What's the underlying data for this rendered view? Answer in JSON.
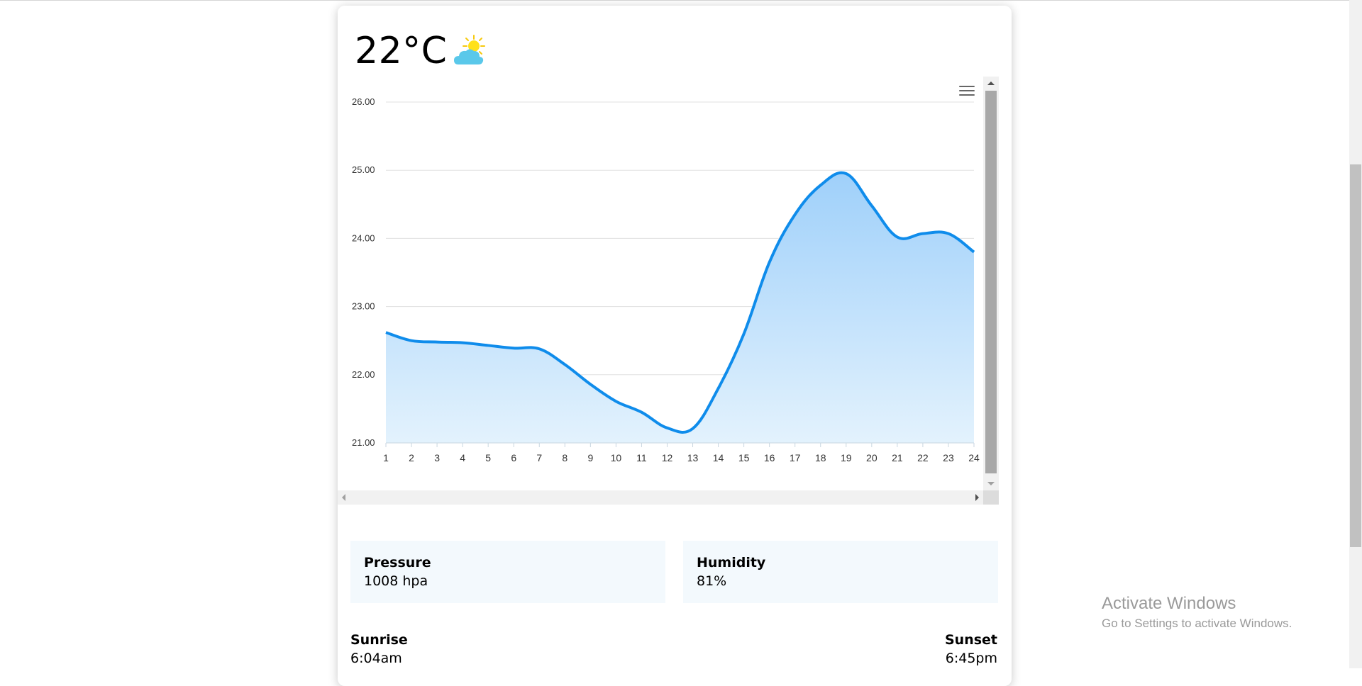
{
  "weather": {
    "temperature": "22°C",
    "icon": "partly-cloudy-icon"
  },
  "chart_data": {
    "type": "area",
    "x": [
      1,
      2,
      3,
      4,
      5,
      6,
      7,
      8,
      9,
      10,
      11,
      12,
      13,
      14,
      15,
      16,
      17,
      18,
      19,
      20,
      21,
      22,
      23,
      24
    ],
    "series": [
      {
        "values": [
          22.62,
          22.5,
          22.48,
          22.47,
          22.43,
          22.39,
          22.38,
          22.15,
          21.86,
          21.61,
          21.45,
          21.22,
          21.21,
          21.8,
          22.6,
          23.65,
          24.35,
          24.78,
          24.95,
          24.48,
          24.02,
          24.07,
          24.07,
          23.8
        ]
      }
    ],
    "ylim": [
      21,
      26
    ],
    "yticks": [
      "21.00",
      "22.00",
      "23.00",
      "24.00",
      "25.00",
      "26.00"
    ],
    "xticks": [
      "1",
      "2",
      "3",
      "4",
      "5",
      "6",
      "7",
      "8",
      "9",
      "10",
      "11",
      "12",
      "13",
      "14",
      "15",
      "16",
      "17",
      "18",
      "19",
      "20",
      "21",
      "22",
      "23",
      "24"
    ],
    "grid": true,
    "line_color": "#0f8ceb",
    "fill_top_color": "#9fd0fa",
    "fill_bottom_color": "#e3f2fd"
  },
  "stats": {
    "pressure": {
      "label": "Pressure",
      "value": "1008 hpa"
    },
    "humidity": {
      "label": "Humidity",
      "value": "81%"
    }
  },
  "sun": {
    "sunrise": {
      "label": "Sunrise",
      "value": "6:04am"
    },
    "sunset": {
      "label": "Sunset",
      "value": "6:45pm"
    }
  },
  "watermark": {
    "line1": "Activate Windows",
    "line2": "Go to Settings to activate Windows."
  }
}
